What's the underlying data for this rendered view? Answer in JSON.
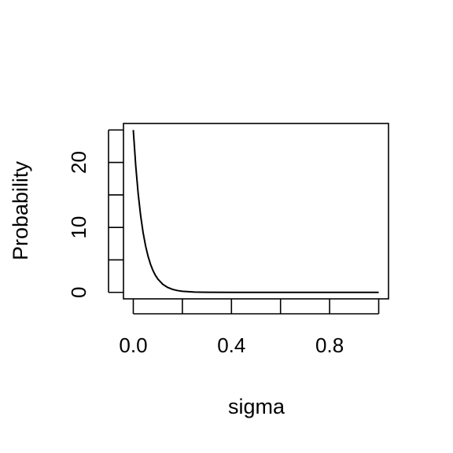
{
  "chart_data": {
    "type": "line",
    "title": "",
    "xlabel": "sigma",
    "ylabel": "Probability",
    "xlim": [
      -0.04,
      1.04
    ],
    "ylim": [
      -1,
      26
    ],
    "x_ticks": [
      0.0,
      0.2,
      0.4,
      0.6,
      0.8,
      1.0
    ],
    "x_tick_labels": [
      "0.0",
      "",
      "0.4",
      "",
      "0.8",
      ""
    ],
    "y_ticks": [
      0,
      5,
      10,
      15,
      20,
      25
    ],
    "y_tick_labels": [
      "0",
      "",
      "10",
      "",
      "20",
      ""
    ],
    "grid": false,
    "legend": "none",
    "line_color": "#000000",
    "series": [
      {
        "x": [
          0.0,
          0.01,
          0.02,
          0.03,
          0.04,
          0.05,
          0.06,
          0.07,
          0.08,
          0.09,
          0.1,
          0.12,
          0.14,
          0.16,
          0.18,
          0.2,
          0.25,
          0.3,
          0.4,
          0.5,
          0.6,
          0.7,
          0.8,
          0.9,
          1.0
        ],
        "y": [
          25.0,
          19.47,
          15.16,
          11.81,
          9.2,
          7.16,
          5.58,
          4.35,
          3.38,
          2.64,
          2.05,
          1.25,
          0.76,
          0.46,
          0.28,
          0.17,
          0.05,
          0.01,
          0.0,
          0.0,
          0.0,
          0.0,
          0.0,
          0.0,
          0.0
        ]
      }
    ]
  }
}
